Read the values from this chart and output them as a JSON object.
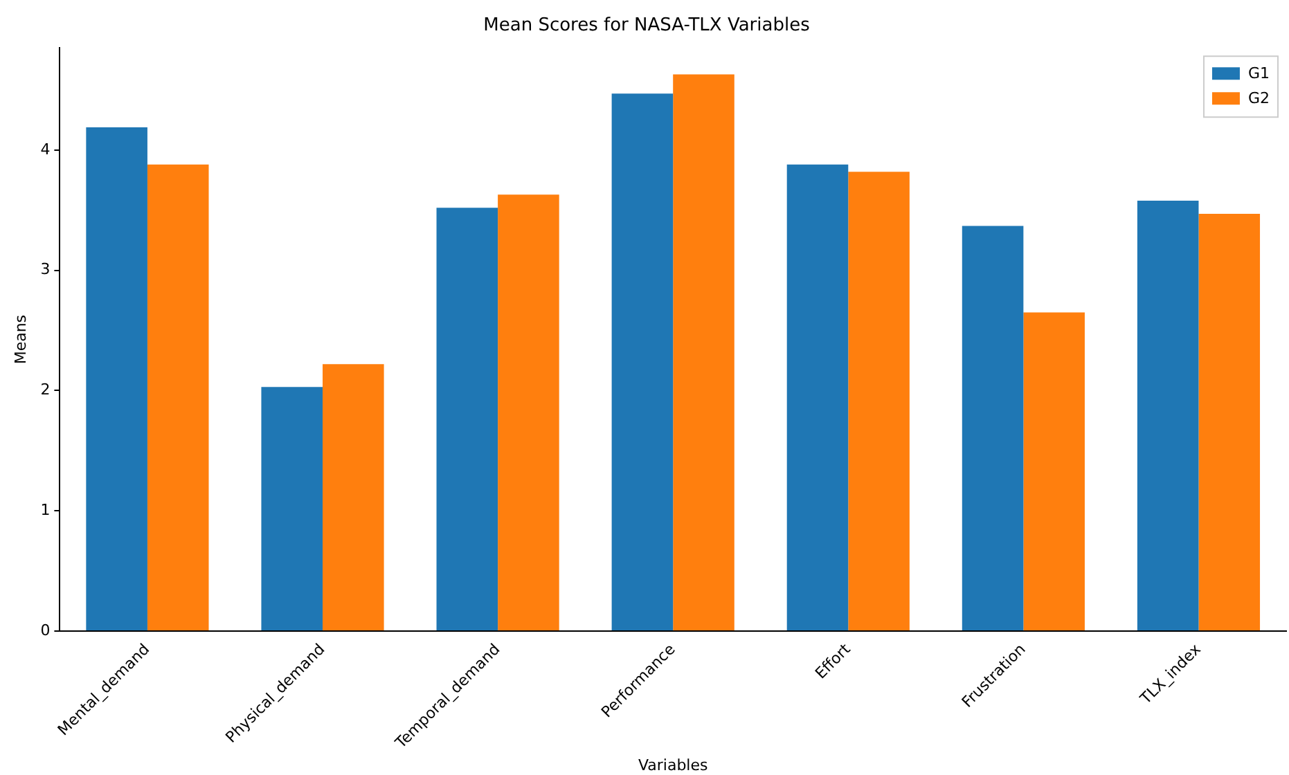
{
  "chart_data": {
    "type": "bar",
    "title": "Mean Scores for NASA-TLX Variables",
    "xlabel": "Variables",
    "ylabel": "Means",
    "categories": [
      "Mental_demand",
      "Physical_demand",
      "Temporal_demand",
      "Performance",
      "Effort",
      "Frustration",
      "TLX_index"
    ],
    "series": [
      {
        "name": "G1",
        "color": "#1f77b4",
        "values": [
          4.19,
          2.03,
          3.52,
          4.47,
          3.88,
          3.37,
          3.58
        ]
      },
      {
        "name": "G2",
        "color": "#ff7f0e",
        "values": [
          3.88,
          2.22,
          3.63,
          4.63,
          3.82,
          2.65,
          3.47
        ]
      }
    ],
    "ylim": [
      0,
      4.85
    ],
    "yticks": [
      0,
      1,
      2,
      3,
      4
    ],
    "grid": false,
    "legend": "top right"
  }
}
